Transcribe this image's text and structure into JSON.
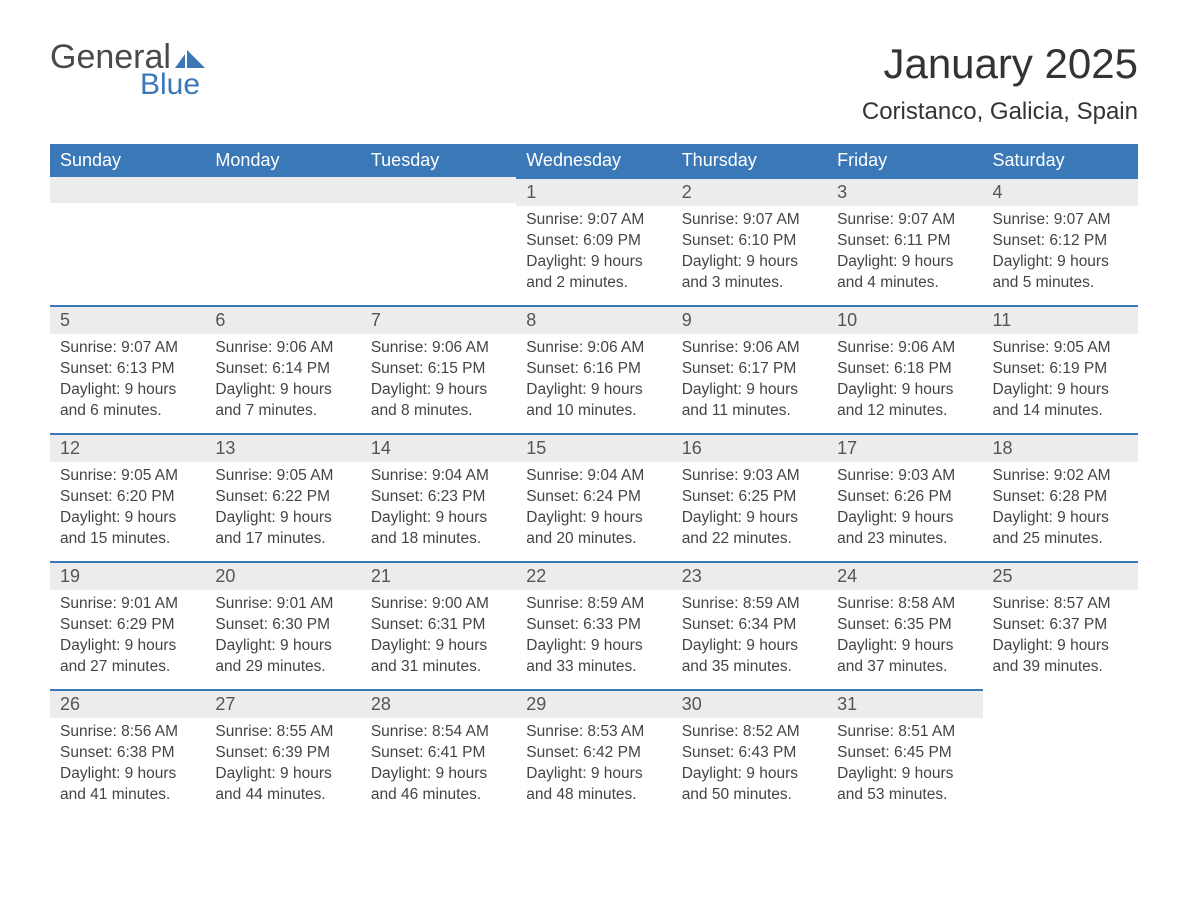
{
  "brand": {
    "general": "General",
    "blue": "Blue"
  },
  "title": "January 2025",
  "location": "Coristanco, Galicia, Spain",
  "colors": {
    "header_bg": "#3a78b8",
    "header_text": "#ffffff",
    "daynum_bg": "#ececec",
    "row_border": "#3a78b8",
    "body_text": "#444444",
    "page_bg": "#ffffff"
  },
  "typography": {
    "title_fontsize": 42,
    "location_fontsize": 24,
    "header_fontsize": 18,
    "daynum_fontsize": 18,
    "cell_fontsize": 15.5
  },
  "layout": {
    "columns": 7,
    "rows": 6,
    "start_day_index": 3
  },
  "days_of_week": [
    "Sunday",
    "Monday",
    "Tuesday",
    "Wednesday",
    "Thursday",
    "Friday",
    "Saturday"
  ],
  "weeks": [
    [
      null,
      null,
      null,
      {
        "n": "1",
        "sunrise": "Sunrise: 9:07 AM",
        "sunset": "Sunset: 6:09 PM",
        "d1": "Daylight: 9 hours",
        "d2": "and 2 minutes."
      },
      {
        "n": "2",
        "sunrise": "Sunrise: 9:07 AM",
        "sunset": "Sunset: 6:10 PM",
        "d1": "Daylight: 9 hours",
        "d2": "and 3 minutes."
      },
      {
        "n": "3",
        "sunrise": "Sunrise: 9:07 AM",
        "sunset": "Sunset: 6:11 PM",
        "d1": "Daylight: 9 hours",
        "d2": "and 4 minutes."
      },
      {
        "n": "4",
        "sunrise": "Sunrise: 9:07 AM",
        "sunset": "Sunset: 6:12 PM",
        "d1": "Daylight: 9 hours",
        "d2": "and 5 minutes."
      }
    ],
    [
      {
        "n": "5",
        "sunrise": "Sunrise: 9:07 AM",
        "sunset": "Sunset: 6:13 PM",
        "d1": "Daylight: 9 hours",
        "d2": "and 6 minutes."
      },
      {
        "n": "6",
        "sunrise": "Sunrise: 9:06 AM",
        "sunset": "Sunset: 6:14 PM",
        "d1": "Daylight: 9 hours",
        "d2": "and 7 minutes."
      },
      {
        "n": "7",
        "sunrise": "Sunrise: 9:06 AM",
        "sunset": "Sunset: 6:15 PM",
        "d1": "Daylight: 9 hours",
        "d2": "and 8 minutes."
      },
      {
        "n": "8",
        "sunrise": "Sunrise: 9:06 AM",
        "sunset": "Sunset: 6:16 PM",
        "d1": "Daylight: 9 hours",
        "d2": "and 10 minutes."
      },
      {
        "n": "9",
        "sunrise": "Sunrise: 9:06 AM",
        "sunset": "Sunset: 6:17 PM",
        "d1": "Daylight: 9 hours",
        "d2": "and 11 minutes."
      },
      {
        "n": "10",
        "sunrise": "Sunrise: 9:06 AM",
        "sunset": "Sunset: 6:18 PM",
        "d1": "Daylight: 9 hours",
        "d2": "and 12 minutes."
      },
      {
        "n": "11",
        "sunrise": "Sunrise: 9:05 AM",
        "sunset": "Sunset: 6:19 PM",
        "d1": "Daylight: 9 hours",
        "d2": "and 14 minutes."
      }
    ],
    [
      {
        "n": "12",
        "sunrise": "Sunrise: 9:05 AM",
        "sunset": "Sunset: 6:20 PM",
        "d1": "Daylight: 9 hours",
        "d2": "and 15 minutes."
      },
      {
        "n": "13",
        "sunrise": "Sunrise: 9:05 AM",
        "sunset": "Sunset: 6:22 PM",
        "d1": "Daylight: 9 hours",
        "d2": "and 17 minutes."
      },
      {
        "n": "14",
        "sunrise": "Sunrise: 9:04 AM",
        "sunset": "Sunset: 6:23 PM",
        "d1": "Daylight: 9 hours",
        "d2": "and 18 minutes."
      },
      {
        "n": "15",
        "sunrise": "Sunrise: 9:04 AM",
        "sunset": "Sunset: 6:24 PM",
        "d1": "Daylight: 9 hours",
        "d2": "and 20 minutes."
      },
      {
        "n": "16",
        "sunrise": "Sunrise: 9:03 AM",
        "sunset": "Sunset: 6:25 PM",
        "d1": "Daylight: 9 hours",
        "d2": "and 22 minutes."
      },
      {
        "n": "17",
        "sunrise": "Sunrise: 9:03 AM",
        "sunset": "Sunset: 6:26 PM",
        "d1": "Daylight: 9 hours",
        "d2": "and 23 minutes."
      },
      {
        "n": "18",
        "sunrise": "Sunrise: 9:02 AM",
        "sunset": "Sunset: 6:28 PM",
        "d1": "Daylight: 9 hours",
        "d2": "and 25 minutes."
      }
    ],
    [
      {
        "n": "19",
        "sunrise": "Sunrise: 9:01 AM",
        "sunset": "Sunset: 6:29 PM",
        "d1": "Daylight: 9 hours",
        "d2": "and 27 minutes."
      },
      {
        "n": "20",
        "sunrise": "Sunrise: 9:01 AM",
        "sunset": "Sunset: 6:30 PM",
        "d1": "Daylight: 9 hours",
        "d2": "and 29 minutes."
      },
      {
        "n": "21",
        "sunrise": "Sunrise: 9:00 AM",
        "sunset": "Sunset: 6:31 PM",
        "d1": "Daylight: 9 hours",
        "d2": "and 31 minutes."
      },
      {
        "n": "22",
        "sunrise": "Sunrise: 8:59 AM",
        "sunset": "Sunset: 6:33 PM",
        "d1": "Daylight: 9 hours",
        "d2": "and 33 minutes."
      },
      {
        "n": "23",
        "sunrise": "Sunrise: 8:59 AM",
        "sunset": "Sunset: 6:34 PM",
        "d1": "Daylight: 9 hours",
        "d2": "and 35 minutes."
      },
      {
        "n": "24",
        "sunrise": "Sunrise: 8:58 AM",
        "sunset": "Sunset: 6:35 PM",
        "d1": "Daylight: 9 hours",
        "d2": "and 37 minutes."
      },
      {
        "n": "25",
        "sunrise": "Sunrise: 8:57 AM",
        "sunset": "Sunset: 6:37 PM",
        "d1": "Daylight: 9 hours",
        "d2": "and 39 minutes."
      }
    ],
    [
      {
        "n": "26",
        "sunrise": "Sunrise: 8:56 AM",
        "sunset": "Sunset: 6:38 PM",
        "d1": "Daylight: 9 hours",
        "d2": "and 41 minutes."
      },
      {
        "n": "27",
        "sunrise": "Sunrise: 8:55 AM",
        "sunset": "Sunset: 6:39 PM",
        "d1": "Daylight: 9 hours",
        "d2": "and 44 minutes."
      },
      {
        "n": "28",
        "sunrise": "Sunrise: 8:54 AM",
        "sunset": "Sunset: 6:41 PM",
        "d1": "Daylight: 9 hours",
        "d2": "and 46 minutes."
      },
      {
        "n": "29",
        "sunrise": "Sunrise: 8:53 AM",
        "sunset": "Sunset: 6:42 PM",
        "d1": "Daylight: 9 hours",
        "d2": "and 48 minutes."
      },
      {
        "n": "30",
        "sunrise": "Sunrise: 8:52 AM",
        "sunset": "Sunset: 6:43 PM",
        "d1": "Daylight: 9 hours",
        "d2": "and 50 minutes."
      },
      {
        "n": "31",
        "sunrise": "Sunrise: 8:51 AM",
        "sunset": "Sunset: 6:45 PM",
        "d1": "Daylight: 9 hours",
        "d2": "and 53 minutes."
      },
      null
    ]
  ]
}
